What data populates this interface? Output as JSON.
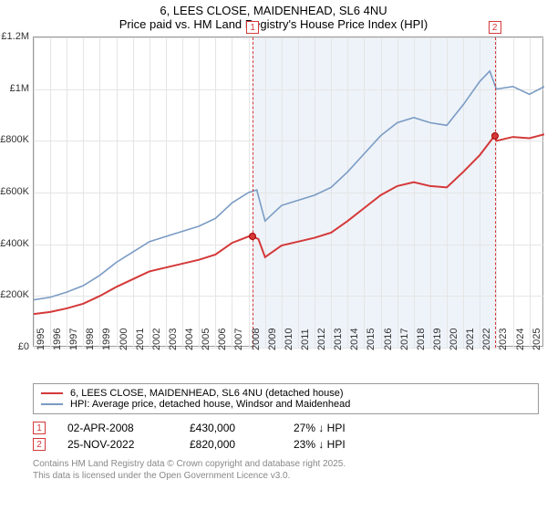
{
  "title_line1": "6, LEES CLOSE, MAIDENHEAD, SL6 4NU",
  "title_line2": "Price paid vs. HM Land Registry's House Price Index (HPI)",
  "chart": {
    "type": "line",
    "x_start": 1995,
    "x_end": 2025.9,
    "x_tick_step": 1,
    "y_start": 0,
    "y_end": 1200000,
    "y_tick_step": 200000,
    "y_labels": [
      "£0",
      "£200K",
      "£400K",
      "£600K",
      "£800K",
      "£1M",
      "£1.2M"
    ],
    "background_color": "#ffffff",
    "grid_color": "#e5e5e5",
    "shade_start": 2008.25,
    "shade_end": 2022.9,
    "shade_color": "#eef3f9",
    "series": [
      {
        "name": "hpi",
        "color": "#7a9bc4",
        "width": 1.6,
        "label": "HPI: Average price, detached house, Windsor and Maidenhead",
        "data": [
          [
            1995,
            185000
          ],
          [
            1996,
            195000
          ],
          [
            1997,
            215000
          ],
          [
            1998,
            240000
          ],
          [
            1999,
            280000
          ],
          [
            2000,
            330000
          ],
          [
            2001,
            370000
          ],
          [
            2002,
            410000
          ],
          [
            2003,
            430000
          ],
          [
            2004,
            450000
          ],
          [
            2005,
            470000
          ],
          [
            2006,
            500000
          ],
          [
            2007,
            560000
          ],
          [
            2008,
            600000
          ],
          [
            2008.5,
            610000
          ],
          [
            2009,
            490000
          ],
          [
            2010,
            550000
          ],
          [
            2011,
            570000
          ],
          [
            2012,
            590000
          ],
          [
            2013,
            620000
          ],
          [
            2014,
            680000
          ],
          [
            2015,
            750000
          ],
          [
            2016,
            820000
          ],
          [
            2017,
            870000
          ],
          [
            2018,
            890000
          ],
          [
            2019,
            870000
          ],
          [
            2020,
            860000
          ],
          [
            2021,
            940000
          ],
          [
            2022,
            1030000
          ],
          [
            2022.6,
            1070000
          ],
          [
            2023,
            1000000
          ],
          [
            2024,
            1010000
          ],
          [
            2025,
            980000
          ],
          [
            2025.9,
            1010000
          ]
        ]
      },
      {
        "name": "price_paid",
        "color": "#d43939",
        "width": 2,
        "label": "6, LEES CLOSE, MAIDENHEAD, SL6 4NU (detached house)",
        "data": [
          [
            1995,
            130000
          ],
          [
            1996,
            138000
          ],
          [
            1997,
            152000
          ],
          [
            1998,
            170000
          ],
          [
            1999,
            200000
          ],
          [
            2000,
            235000
          ],
          [
            2001,
            265000
          ],
          [
            2002,
            295000
          ],
          [
            2003,
            310000
          ],
          [
            2004,
            325000
          ],
          [
            2005,
            340000
          ],
          [
            2006,
            360000
          ],
          [
            2007,
            405000
          ],
          [
            2008,
            430000
          ],
          [
            2008.25,
            430000
          ],
          [
            2008.6,
            420000
          ],
          [
            2009,
            350000
          ],
          [
            2010,
            395000
          ],
          [
            2011,
            410000
          ],
          [
            2012,
            425000
          ],
          [
            2013,
            445000
          ],
          [
            2014,
            490000
          ],
          [
            2015,
            540000
          ],
          [
            2016,
            590000
          ],
          [
            2017,
            625000
          ],
          [
            2018,
            640000
          ],
          [
            2019,
            625000
          ],
          [
            2020,
            620000
          ],
          [
            2021,
            680000
          ],
          [
            2022,
            745000
          ],
          [
            2022.9,
            820000
          ],
          [
            2023,
            800000
          ],
          [
            2024,
            815000
          ],
          [
            2025,
            810000
          ],
          [
            2025.9,
            825000
          ]
        ]
      }
    ],
    "markers": [
      {
        "id": "1",
        "x": 2008.25,
        "y": 430000
      },
      {
        "id": "2",
        "x": 2022.9,
        "y": 820000
      }
    ]
  },
  "legend": {
    "items": [
      {
        "color": "#d43939",
        "width": 2,
        "label": "6, LEES CLOSE, MAIDENHEAD, SL6 4NU (detached house)"
      },
      {
        "color": "#7a9bc4",
        "width": 1.6,
        "label": "HPI: Average price, detached house, Windsor and Maidenhead"
      }
    ]
  },
  "transactions": [
    {
      "id": "1",
      "date": "02-APR-2008",
      "price": "£430,000",
      "delta": "27% ↓ HPI"
    },
    {
      "id": "2",
      "date": "25-NOV-2022",
      "price": "£820,000",
      "delta": "23% ↓ HPI"
    }
  ],
  "attribution": {
    "line1": "Contains HM Land Registry data © Crown copyright and database right 2025.",
    "line2": "This data is licensed under the Open Government Licence v3.0."
  }
}
